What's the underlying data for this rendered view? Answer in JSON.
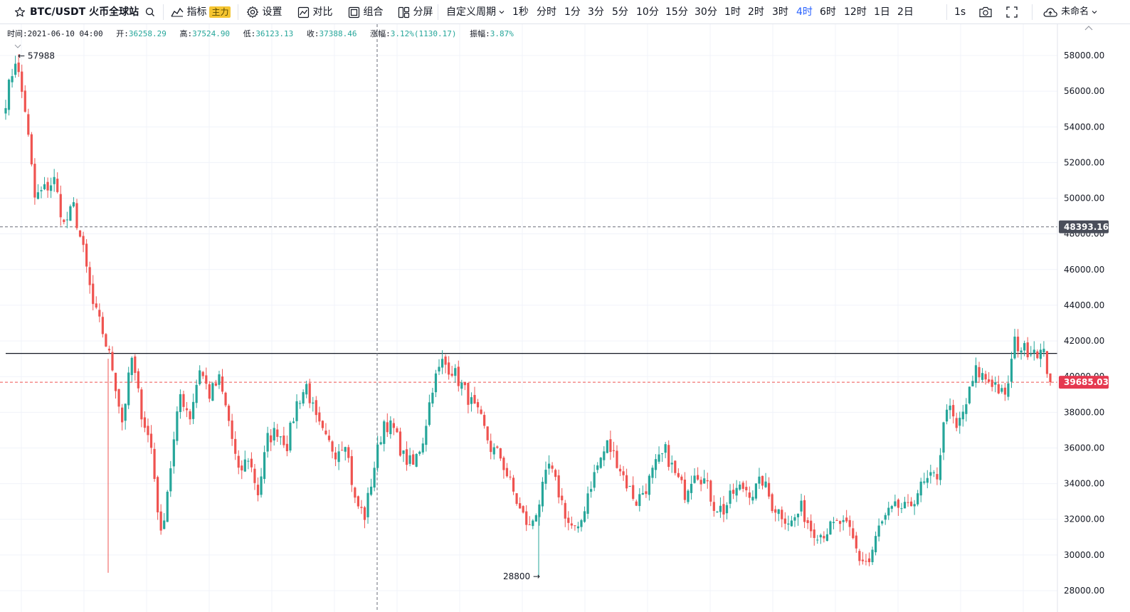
{
  "toolbar": {
    "symbol": "BTC/USDT 火币全球站",
    "indicators_label": "指标",
    "indicators_badge": "主力",
    "settings_label": "设置",
    "compare_label": "对比",
    "combine_label": "组合",
    "split_label": "分屏",
    "custom_period_label": "自定义周期",
    "intervals": [
      "1秒",
      "分时",
      "1分",
      "3分",
      "5分",
      "10分",
      "15分",
      "30分",
      "1时",
      "2时",
      "3时",
      "4时",
      "6时",
      "12时",
      "1日",
      "2日"
    ],
    "active_interval": "4时",
    "replay_label": "1s",
    "layout_name": "未命名",
    "icons": {
      "star": "star-icon",
      "search": "search-icon",
      "indicators": "indicators-icon",
      "settings": "gear-icon",
      "compare": "compare-icon",
      "combine": "combine-icon",
      "split": "split-screen-icon",
      "camera": "camera-icon",
      "fullscreen": "fullscreen-icon",
      "cloud": "cloud-icon"
    }
  },
  "infobar": {
    "time_label": "时间:",
    "time_value": "2021-06-10 04:00",
    "open_label": "开:",
    "open_value": "36258.29",
    "high_label": "高:",
    "high_value": "37524.90",
    "low_label": "低:",
    "low_value": "36123.13",
    "close_label": "收:",
    "close_value": "37388.46",
    "change_label": "涨幅:",
    "change_value": "3.12%(1130.17)",
    "amplitude_label": "振幅:",
    "amplitude_value": "3.87%"
  },
  "colors": {
    "up": "#26a69a",
    "down": "#ef5350",
    "active_interval": "#2962ff",
    "last_price_tag": "#e53950",
    "crosshair_tag": "#4a4e5a"
  },
  "chart_data": {
    "type": "candlestick",
    "symbol": "BTC/USDT",
    "interval": "4时",
    "ylim": [
      27600,
      59200
    ],
    "y_ticks": [
      28000,
      30000,
      32000,
      34000,
      36000,
      38000,
      40000,
      42000,
      44000,
      46000,
      48000,
      50000,
      52000,
      54000,
      56000,
      58000
    ],
    "y_tick_labels": [
      "28000.00",
      "30000.00",
      "32000.00",
      "34000.00",
      "36000.00",
      "38000.00",
      "40000.00",
      "42000.00",
      "44000.00",
      "46000.00",
      "48000.00",
      "50000.00",
      "52000.00",
      "54000.00",
      "56000.00",
      "58000.00"
    ],
    "high_marker_label": "57988",
    "high_marker_value": 57988,
    "low_marker_label": "28800",
    "low_marker_value": 28800,
    "crosshair_price": 48393.16,
    "crosshair_price_label": "48393.16",
    "last_price": 39685.03,
    "last_price_label": "39685.03",
    "horizontal_line": 41300,
    "price_path": [
      [
        0,
        55500
      ],
      [
        3,
        57800
      ],
      [
        6,
        55000
      ],
      [
        9,
        50000
      ],
      [
        12,
        50500
      ],
      [
        15,
        51000
      ],
      [
        18,
        48500
      ],
      [
        21,
        49500
      ],
      [
        24,
        47000
      ],
      [
        27,
        44000
      ],
      [
        30,
        42500
      ],
      [
        33,
        40500
      ],
      [
        36,
        37500
      ],
      [
        39,
        41000
      ],
      [
        42,
        38000
      ],
      [
        45,
        36000
      ],
      [
        48,
        31000
      ],
      [
        51,
        35000
      ],
      [
        54,
        39000
      ],
      [
        57,
        37800
      ],
      [
        60,
        40500
      ],
      [
        63,
        39000
      ],
      [
        66,
        39800
      ],
      [
        69,
        37500
      ],
      [
        72,
        34500
      ],
      [
        75,
        35500
      ],
      [
        78,
        33500
      ],
      [
        81,
        36500
      ],
      [
        84,
        37000
      ],
      [
        87,
        36200
      ],
      [
        90,
        38500
      ],
      [
        93,
        39500
      ],
      [
        96,
        37500
      ],
      [
        99,
        36400
      ],
      [
        102,
        35800
      ],
      [
        105,
        36500
      ],
      [
        108,
        33000
      ],
      [
        111,
        32200
      ],
      [
        114,
        35000
      ],
      [
        117,
        37500
      ],
      [
        120,
        37000
      ],
      [
        123,
        35500
      ],
      [
        126,
        35000
      ],
      [
        129,
        36500
      ],
      [
        132,
        39500
      ],
      [
        135,
        40800
      ],
      [
        138,
        40400
      ],
      [
        141,
        39500
      ],
      [
        144,
        38500
      ],
      [
        147,
        37500
      ],
      [
        150,
        36000
      ],
      [
        153,
        35500
      ],
      [
        156,
        34000
      ],
      [
        159,
        32500
      ],
      [
        162,
        31500
      ],
      [
        165,
        33000
      ],
      [
        168,
        35000
      ],
      [
        171,
        33500
      ],
      [
        174,
        31800
      ],
      [
        177,
        31200
      ],
      [
        180,
        33500
      ],
      [
        183,
        35000
      ],
      [
        186,
        36200
      ],
      [
        189,
        35300
      ],
      [
        192,
        34000
      ],
      [
        195,
        33000
      ],
      [
        198,
        33800
      ],
      [
        201,
        35000
      ],
      [
        204,
        35800
      ],
      [
        207,
        34500
      ],
      [
        210,
        33500
      ],
      [
        213,
        34800
      ],
      [
        216,
        34200
      ],
      [
        219,
        32800
      ],
      [
        222,
        32500
      ],
      [
        225,
        33500
      ],
      [
        228,
        33800
      ],
      [
        231,
        33500
      ],
      [
        234,
        34200
      ],
      [
        237,
        32800
      ],
      [
        240,
        32300
      ],
      [
        243,
        31800
      ],
      [
        246,
        32600
      ],
      [
        249,
        31500
      ],
      [
        252,
        31200
      ],
      [
        255,
        31500
      ],
      [
        258,
        31800
      ],
      [
        261,
        31300
      ],
      [
        264,
        29800
      ],
      [
        267,
        29600
      ],
      [
        270,
        31500
      ],
      [
        273,
        32300
      ],
      [
        276,
        32700
      ],
      [
        279,
        32500
      ],
      [
        282,
        33600
      ],
      [
        285,
        34100
      ],
      [
        288,
        34500
      ],
      [
        291,
        38500
      ],
      [
        294,
        37000
      ],
      [
        297,
        38500
      ],
      [
        300,
        40300
      ],
      [
        303,
        39900
      ],
      [
        306,
        39600
      ],
      [
        309,
        38700
      ],
      [
        312,
        41900
      ],
      [
        315,
        41500
      ],
      [
        318,
        41600
      ],
      [
        321,
        41200
      ],
      [
        323,
        39685
      ]
    ]
  }
}
